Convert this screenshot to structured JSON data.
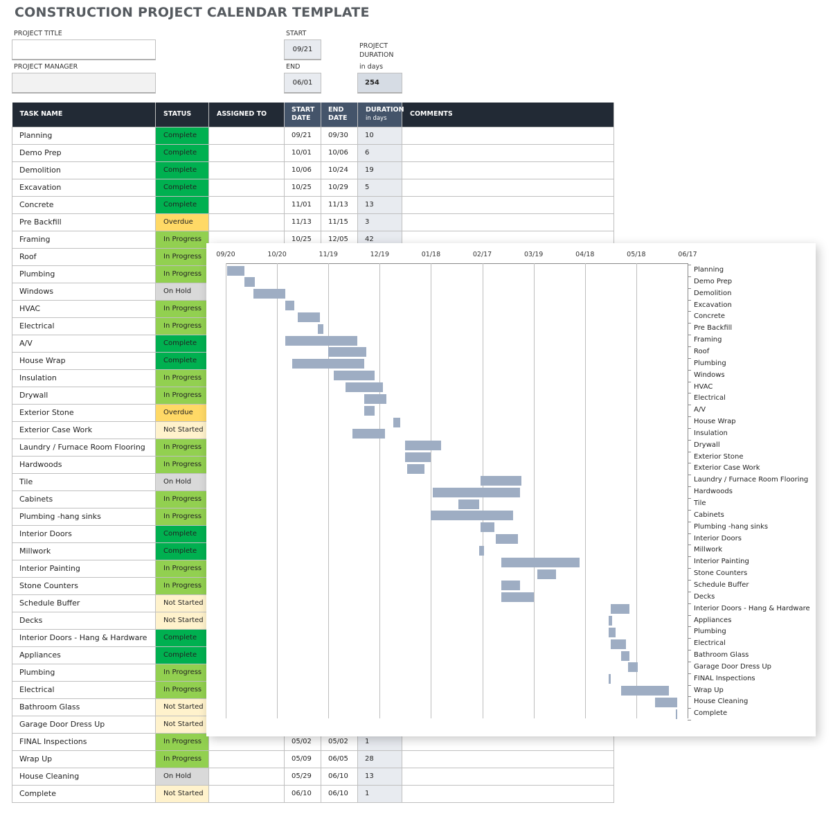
{
  "title": "CONSTRUCTION PROJECT CALENDAR TEMPLATE",
  "project": {
    "title_label": "PROJECT TITLE",
    "title_value": "",
    "manager_label": "PROJECT MANAGER",
    "manager_value": "",
    "start_label": "START",
    "start_value": "09/21",
    "end_label": "END",
    "end_value": "06/01",
    "duration_label_line1": "PROJECT",
    "duration_label_line2": "DURATION",
    "duration_label_line3": "in days",
    "duration_value": "254"
  },
  "table": {
    "headers": {
      "task": "TASK NAME",
      "status": "STATUS",
      "assigned": "ASSIGNED TO",
      "start_l1": "START",
      "start_l2": "DATE",
      "end_l1": "END",
      "end_l2": "DATE",
      "duration_l1": "DURATION",
      "duration_l2": "in days",
      "comments": "COMMENTS"
    },
    "status_colors": {
      "Complete": "#00b050",
      "In Progress": "#92d050",
      "Overdue": "#ffd966",
      "On Hold": "#d9d9d9",
      "Not Started": "#fff2cc"
    },
    "rows": [
      {
        "task": "Planning",
        "status": "Complete",
        "assigned": "",
        "start": "09/21",
        "end": "09/30",
        "duration": "10",
        "comments": ""
      },
      {
        "task": "Demo Prep",
        "status": "Complete",
        "assigned": "",
        "start": "10/01",
        "end": "10/06",
        "duration": "6",
        "comments": ""
      },
      {
        "task": "Demolition",
        "status": "Complete",
        "assigned": "",
        "start": "10/06",
        "end": "10/24",
        "duration": "19",
        "comments": ""
      },
      {
        "task": "Excavation",
        "status": "Complete",
        "assigned": "",
        "start": "10/25",
        "end": "10/29",
        "duration": "5",
        "comments": ""
      },
      {
        "task": "Concrete",
        "status": "Complete",
        "assigned": "",
        "start": "11/01",
        "end": "11/13",
        "duration": "13",
        "comments": ""
      },
      {
        "task": "Pre Backfill",
        "status": "Overdue",
        "assigned": "",
        "start": "11/13",
        "end": "11/15",
        "duration": "3",
        "comments": ""
      },
      {
        "task": "Framing",
        "status": "In Progress",
        "assigned": "",
        "start": "10/25",
        "end": "12/05",
        "duration": "42",
        "comments": ""
      },
      {
        "task": "Roof",
        "status": "In Progress",
        "assigned": "",
        "start": "",
        "end": "",
        "duration": "",
        "comments": ""
      },
      {
        "task": "Plumbing",
        "status": "In Progress",
        "assigned": "",
        "start": "",
        "end": "",
        "duration": "",
        "comments": ""
      },
      {
        "task": "Windows",
        "status": "On Hold",
        "assigned": "",
        "start": "",
        "end": "",
        "duration": "",
        "comments": ""
      },
      {
        "task": "HVAC",
        "status": "In Progress",
        "assigned": "",
        "start": "",
        "end": "",
        "duration": "",
        "comments": ""
      },
      {
        "task": "Electrical",
        "status": "In Progress",
        "assigned": "",
        "start": "",
        "end": "",
        "duration": "",
        "comments": ""
      },
      {
        "task": "A/V",
        "status": "Complete",
        "assigned": "",
        "start": "",
        "end": "",
        "duration": "",
        "comments": ""
      },
      {
        "task": "House Wrap",
        "status": "Complete",
        "assigned": "",
        "start": "",
        "end": "",
        "duration": "",
        "comments": ""
      },
      {
        "task": "Insulation",
        "status": "In Progress",
        "assigned": "",
        "start": "",
        "end": "",
        "duration": "",
        "comments": ""
      },
      {
        "task": "Drywall",
        "status": "In Progress",
        "assigned": "",
        "start": "",
        "end": "",
        "duration": "",
        "comments": ""
      },
      {
        "task": "Exterior Stone",
        "status": "Overdue",
        "assigned": "",
        "start": "",
        "end": "",
        "duration": "",
        "comments": ""
      },
      {
        "task": "Exterior Case Work",
        "status": "Not Started",
        "assigned": "",
        "start": "",
        "end": "",
        "duration": "",
        "comments": ""
      },
      {
        "task": "Laundry / Furnace Room Flooring",
        "status": "In Progress",
        "assigned": "",
        "start": "",
        "end": "",
        "duration": "",
        "comments": ""
      },
      {
        "task": "Hardwoods",
        "status": "In Progress",
        "assigned": "",
        "start": "",
        "end": "",
        "duration": "",
        "comments": ""
      },
      {
        "task": "Tile",
        "status": "On Hold",
        "assigned": "",
        "start": "",
        "end": "",
        "duration": "",
        "comments": ""
      },
      {
        "task": "Cabinets",
        "status": "In Progress",
        "assigned": "",
        "start": "",
        "end": "",
        "duration": "",
        "comments": ""
      },
      {
        "task": "Plumbing -hang sinks",
        "status": "In Progress",
        "assigned": "",
        "start": "",
        "end": "",
        "duration": "",
        "comments": ""
      },
      {
        "task": "Interior Doors",
        "status": "Complete",
        "assigned": "",
        "start": "",
        "end": "",
        "duration": "",
        "comments": ""
      },
      {
        "task": "Millwork",
        "status": "Complete",
        "assigned": "",
        "start": "",
        "end": "",
        "duration": "",
        "comments": ""
      },
      {
        "task": "Interior Painting",
        "status": "In Progress",
        "assigned": "",
        "start": "",
        "end": "",
        "duration": "",
        "comments": ""
      },
      {
        "task": "Stone Counters",
        "status": "In Progress",
        "assigned": "",
        "start": "",
        "end": "",
        "duration": "",
        "comments": ""
      },
      {
        "task": "Schedule Buffer",
        "status": "Not Started",
        "assigned": "",
        "start": "",
        "end": "",
        "duration": "",
        "comments": ""
      },
      {
        "task": "Decks",
        "status": "Not Started",
        "assigned": "",
        "start": "",
        "end": "",
        "duration": "",
        "comments": ""
      },
      {
        "task": "Interior Doors - Hang & Hardware",
        "status": "Complete",
        "assigned": "",
        "start": "",
        "end": "",
        "duration": "",
        "comments": ""
      },
      {
        "task": "Appliances",
        "status": "Complete",
        "assigned": "",
        "start": "",
        "end": "",
        "duration": "",
        "comments": ""
      },
      {
        "task": "Plumbing",
        "status": "In Progress",
        "assigned": "",
        "start": "",
        "end": "",
        "duration": "",
        "comments": ""
      },
      {
        "task": "Electrical",
        "status": "In Progress",
        "assigned": "",
        "start": "",
        "end": "",
        "duration": "",
        "comments": ""
      },
      {
        "task": "Bathroom Glass",
        "status": "Not Started",
        "assigned": "",
        "start": "",
        "end": "",
        "duration": "",
        "comments": ""
      },
      {
        "task": "Garage Door Dress Up",
        "status": "Not Started",
        "assigned": "",
        "start": "",
        "end": "",
        "duration": "",
        "comments": ""
      },
      {
        "task": "FINAL Inspections",
        "status": "In Progress",
        "assigned": "",
        "start": "05/02",
        "end": "05/02",
        "duration": "1",
        "comments": ""
      },
      {
        "task": "Wrap Up",
        "status": "In Progress",
        "assigned": "",
        "start": "05/09",
        "end": "06/05",
        "duration": "28",
        "comments": ""
      },
      {
        "task": "House Cleaning",
        "status": "On Hold",
        "assigned": "",
        "start": "05/29",
        "end": "06/10",
        "duration": "13",
        "comments": ""
      },
      {
        "task": "Complete",
        "status": "Not Started",
        "assigned": "",
        "start": "06/10",
        "end": "06/10",
        "duration": "1",
        "comments": ""
      }
    ]
  },
  "chart_data": {
    "type": "bar",
    "subtype": "gantt",
    "title": "",
    "xlabel": "",
    "ylabel": "",
    "x_ticks": [
      "09/20",
      "10/20",
      "11/19",
      "12/19",
      "01/18",
      "02/17",
      "03/19",
      "04/18",
      "05/18",
      "06/17"
    ],
    "x_range_days": [
      0,
      270
    ],
    "tick_interval_days": 30,
    "grid": true,
    "bar_color": "#9eadc3",
    "categories": [
      "Planning",
      "Demo Prep",
      "Demolition",
      "Excavation",
      "Concrete",
      "Pre Backfill",
      "Framing",
      "Roof",
      "Plumbing",
      "Windows",
      "HVAC",
      "Electrical",
      "A/V",
      "House Wrap",
      "Insulation",
      "Drywall",
      "Exterior Stone",
      "Exterior Case Work",
      "Laundry / Furnace Room Flooring",
      "Hardwoods",
      "Tile",
      "Cabinets",
      "Plumbing -hang sinks",
      "Interior Doors",
      "Millwork",
      "Interior Painting",
      "Stone Counters",
      "Schedule Buffer",
      "Decks",
      "Interior Doors - Hang & Hardware",
      "Appliances",
      "Plumbing",
      "Electrical",
      "Bathroom Glass",
      "Garage Door Dress Up",
      "FINAL Inspections",
      "Wrap Up",
      "House Cleaning",
      "Complete"
    ],
    "series": [
      {
        "name": "start_offset_days",
        "values": [
          1,
          11,
          16,
          35,
          42,
          54,
          35,
          60,
          39,
          63,
          70,
          81,
          81,
          98,
          74,
          105,
          105,
          106,
          149,
          121,
          136,
          120,
          149,
          158,
          148,
          161,
          182,
          161,
          161,
          225,
          224,
          224,
          225,
          231,
          235,
          224,
          231,
          251,
          263
        ]
      },
      {
        "name": "duration_days",
        "values": [
          10,
          6,
          19,
          5,
          13,
          3,
          42,
          22,
          42,
          24,
          22,
          13,
          6,
          4,
          19,
          21,
          15,
          10,
          24,
          51,
          12,
          48,
          8,
          13,
          3,
          46,
          11,
          11,
          19,
          11,
          2,
          4,
          9,
          5,
          6,
          1,
          28,
          13,
          1
        ]
      }
    ]
  }
}
